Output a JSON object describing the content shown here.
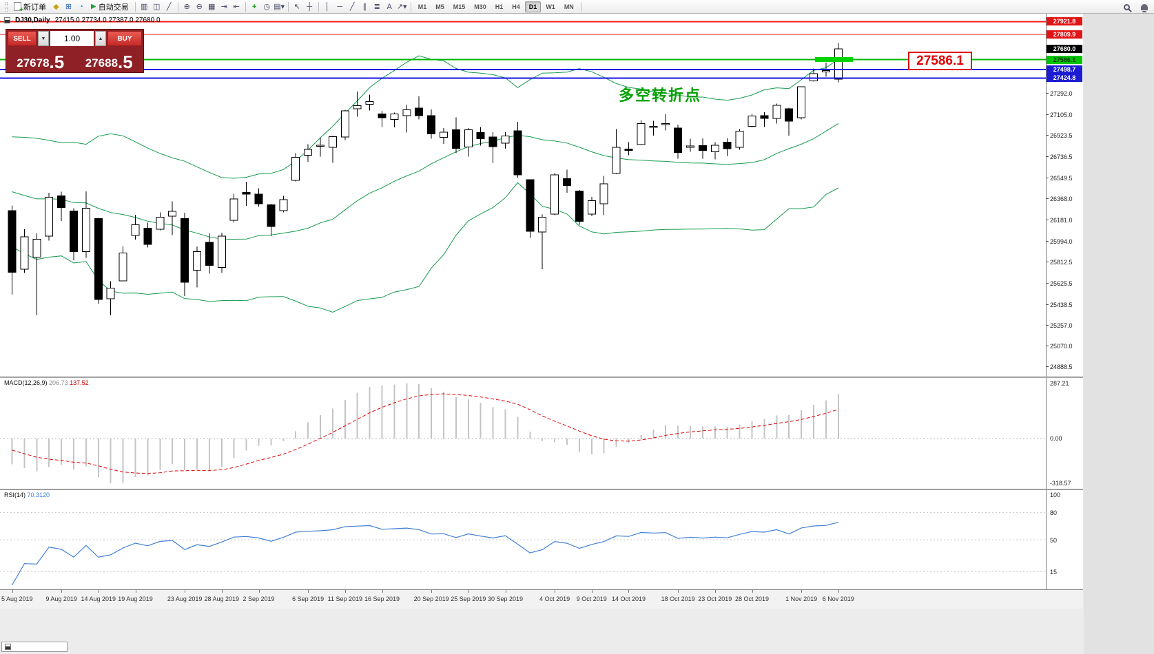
{
  "toolbar": {
    "new_order_label": "新订单",
    "auto_trading_label": "自动交易",
    "timeframes": [
      "M1",
      "M5",
      "M15",
      "M30",
      "H1",
      "H4",
      "D1",
      "W1",
      "MN"
    ],
    "active_timeframe": "D1"
  },
  "chart": {
    "symbol_period": "DJ30,Daily",
    "ohlc_text": "27415.0 27734.0 27387.0 27680.0",
    "annotation": "多空转折点",
    "callout_price": "27586.1",
    "current_price": "27680.0",
    "price_top": 27990,
    "price_bottom": 24800,
    "levels": [
      {
        "price": 27921.8,
        "label": "27921.8",
        "color": "#ff1414",
        "box": "#e01414",
        "text_color": "#ffffff",
        "width": 2,
        "highlight": false
      },
      {
        "price": 27809.9,
        "label": "27809.9",
        "color": "#ff1414",
        "box": "#e01414",
        "text_color": "#ffffff",
        "width": 1,
        "highlight": false
      },
      {
        "price": 27586.1,
        "label": "27586.1",
        "color": "#00b400",
        "box": "#00c400",
        "text_color": "#053305",
        "width": 2,
        "highlight": true
      },
      {
        "price": 27498.7,
        "label": "27498.7",
        "color": "#1414e6",
        "box": "#1c1cd2",
        "text_color": "#ffffff",
        "width": 2,
        "highlight": false
      },
      {
        "price": 27424.8,
        "label": "27424.8",
        "color": "#1414e6",
        "box": "#1c1cd2",
        "text_color": "#ffffff",
        "width": 2,
        "highlight": false
      }
    ],
    "y_ticks": [
      27292.0,
      27105.0,
      26923.5,
      26736.5,
      26549.5,
      26368.0,
      26181.0,
      25994.0,
      25812.5,
      25625.5,
      25438.5,
      25257.0,
      25070.0,
      24888.5
    ]
  },
  "trade_panel": {
    "sell_label": "SELL",
    "buy_label": "BUY",
    "volume": "1.00",
    "sell_price": "27678",
    "sell_pip": ".5",
    "buy_price": "27688",
    "buy_pip": ".5"
  },
  "macd": {
    "title": "MACD(12,26,9)",
    "main_value": "206.73",
    "signal_value": "137.52",
    "scale_top": "287.21",
    "scale_zero": "0.00",
    "scale_bottom": "-318.57"
  },
  "rsi": {
    "title": "RSI(14)",
    "value": "70.3120",
    "levels": [
      100,
      80,
      50,
      15
    ]
  },
  "x_axis": [
    {
      "label": "5 Aug 2019",
      "index": 0
    },
    {
      "label": "9 Aug 2019",
      "index": 4
    },
    {
      "label": "14 Aug 2019",
      "index": 7
    },
    {
      "label": "19 Aug 2019",
      "index": 10
    },
    {
      "label": "23 Aug 2019",
      "index": 14
    },
    {
      "label": "28 Aug 2019",
      "index": 17
    },
    {
      "label": "2 Sep 2019",
      "index": 20
    },
    {
      "label": "6 Sep 2019",
      "index": 24
    },
    {
      "label": "11 Sep 2019",
      "index": 27
    },
    {
      "label": "16 Sep 2019",
      "index": 30
    },
    {
      "label": "20 Sep 2019",
      "index": 34
    },
    {
      "label": "25 Sep 2019",
      "index": 37
    },
    {
      "label": "30 Sep 2019",
      "index": 40
    },
    {
      "label": "4 Oct 2019",
      "index": 44
    },
    {
      "label": "9 Oct 2019",
      "index": 47
    },
    {
      "label": "14 Oct 2019",
      "index": 50
    },
    {
      "label": "18 Oct 2019",
      "index": 54
    },
    {
      "label": "23 Oct 2019",
      "index": 57
    },
    {
      "label": "28 Oct 2019",
      "index": 60
    },
    {
      "label": "1 Nov 2019",
      "index": 64
    },
    {
      "label": "6 Nov 2019",
      "index": 67
    }
  ],
  "chart_data": {
    "type": "candlestick",
    "symbol": "DJ30",
    "timeframe": "Daily",
    "candles": [
      [
        26260,
        26305,
        25520,
        25717
      ],
      [
        25745,
        26095,
        25710,
        26029
      ],
      [
        25850,
        26060,
        25340,
        26007
      ],
      [
        26035,
        26415,
        25995,
        26378
      ],
      [
        26390,
        26426,
        26169,
        26287
      ],
      [
        26255,
        26280,
        25824,
        25897
      ],
      [
        25900,
        26427,
        25845,
        26279
      ],
      [
        26190,
        26195,
        25440,
        25479
      ],
      [
        25485,
        25639,
        25339,
        25579
      ],
      [
        25640,
        25945,
        25640,
        25886
      ],
      [
        26040,
        26222,
        26005,
        26135
      ],
      [
        26105,
        26152,
        25935,
        25962
      ],
      [
        26095,
        26245,
        26085,
        26202
      ],
      [
        26210,
        26340,
        26043,
        26252
      ],
      [
        26190,
        26240,
        25507,
        25628
      ],
      [
        25735,
        25945,
        25585,
        25898
      ],
      [
        25980,
        26060,
        25705,
        25777
      ],
      [
        25760,
        26065,
        25710,
        26036
      ],
      [
        26175,
        26408,
        26155,
        26362
      ],
      [
        26420,
        26514,
        26300,
        26403
      ],
      [
        26405,
        26455,
        26295,
        26320
      ],
      [
        26310,
        26320,
        26034,
        26118
      ],
      [
        26258,
        26390,
        26245,
        26355
      ],
      [
        26525,
        26765,
        26515,
        26728
      ],
      [
        26745,
        26842,
        26690,
        26797
      ],
      [
        26832,
        26900,
        26735,
        26835
      ],
      [
        26815,
        26915,
        26680,
        26909
      ],
      [
        26905,
        27146,
        26880,
        27137
      ],
      [
        27155,
        27307,
        27085,
        27182
      ],
      [
        27195,
        27280,
        27140,
        27219
      ],
      [
        27110,
        27135,
        26995,
        27076
      ],
      [
        27060,
        27122,
        26990,
        27110
      ],
      [
        27095,
        27190,
        26945,
        27147
      ],
      [
        27160,
        27265,
        27060,
        27094
      ],
      [
        27095,
        27150,
        26890,
        26935
      ],
      [
        26905,
        26985,
        26845,
        26949
      ],
      [
        26970,
        27080,
        26765,
        26807
      ],
      [
        26820,
        26985,
        26735,
        26970
      ],
      [
        26945,
        26995,
        26830,
        26891
      ],
      [
        26905,
        26950,
        26675,
        26820
      ],
      [
        26852,
        26950,
        26805,
        26916
      ],
      [
        26960,
        27040,
        26550,
        26573
      ],
      [
        26530,
        26535,
        26020,
        26078
      ],
      [
        26070,
        26225,
        25745,
        26201
      ],
      [
        26230,
        26590,
        26220,
        26573
      ],
      [
        26540,
        26620,
        26415,
        26478
      ],
      [
        26430,
        26440,
        26135,
        26164
      ],
      [
        26230,
        26380,
        26210,
        26346
      ],
      [
        26320,
        26565,
        26220,
        26496
      ],
      [
        26585,
        26975,
        26580,
        26816
      ],
      [
        26800,
        26860,
        26745,
        26787
      ],
      [
        26840,
        27055,
        26835,
        27024
      ],
      [
        26990,
        27050,
        26920,
        27001
      ],
      [
        27025,
        27105,
        26965,
        27025
      ],
      [
        26985,
        27015,
        26715,
        26770
      ],
      [
        26815,
        26890,
        26775,
        26827
      ],
      [
        26830,
        26895,
        26715,
        26788
      ],
      [
        26775,
        26860,
        26710,
        26833
      ],
      [
        26860,
        26895,
        26740,
        26805
      ],
      [
        26815,
        26975,
        26795,
        26958
      ],
      [
        27000,
        27110,
        26990,
        27090
      ],
      [
        27095,
        27125,
        26995,
        27071
      ],
      [
        27070,
        27200,
        27025,
        27186
      ],
      [
        27155,
        27165,
        26920,
        27046
      ],
      [
        27075,
        27350,
        27060,
        27347
      ],
      [
        27400,
        27510,
        27395,
        27462
      ],
      [
        27480,
        27560,
        27435,
        27492
      ],
      [
        27415,
        27734,
        27387,
        27680
      ]
    ]
  }
}
